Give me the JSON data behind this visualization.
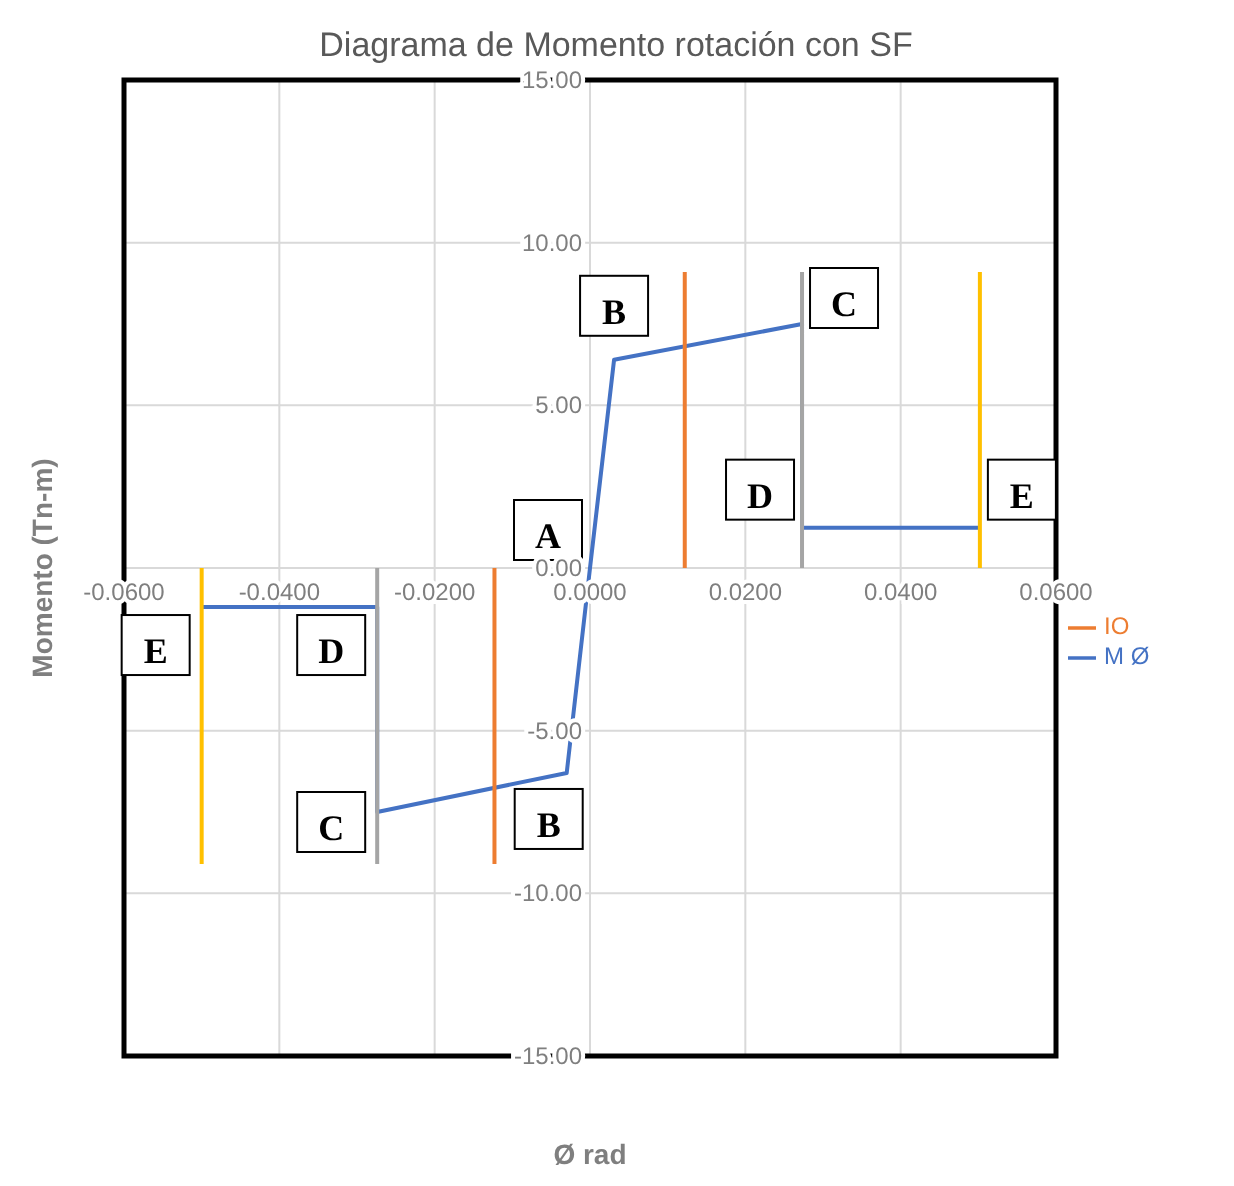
{
  "chart_data": {
    "type": "line",
    "title": "Diagrama de Momento rotación con SF",
    "xlabel": "Ø rad",
    "ylabel": "Momento (Tn-m)",
    "series": [
      {
        "name": "M Ø",
        "color": "#4472c4",
        "x": [
          -0.05,
          -0.0274,
          -0.0274,
          -0.003,
          0,
          0.0031,
          0.0273,
          0.0273,
          0.0502
        ],
        "values": [
          -1.2,
          -1.2,
          -7.5,
          -6.3,
          0,
          6.4,
          7.5,
          1.24,
          1.24
        ]
      },
      {
        "name": "IO",
        "color": "#ed7d31",
        "x": [
          -0.0123,
          -0.0123,
          null,
          0.0122,
          0.0122
        ],
        "values": [
          -9.1,
          0,
          null,
          0,
          9.1
        ]
      },
      {
        "color": "#a5a5a5",
        "x": [
          -0.0274,
          -0.0274,
          null,
          0.0273,
          0.0273
        ],
        "values": [
          -9.1,
          0,
          null,
          0,
          9.1
        ]
      },
      {
        "color": "#ffc000",
        "x": [
          -0.05,
          -0.05,
          null,
          0.0502,
          0.0502
        ],
        "values": [
          -9.1,
          0,
          null,
          0,
          9.1
        ]
      }
    ],
    "xlim": [
      -0.06,
      0.06
    ],
    "xticks": [
      {
        "value": -0.06,
        "label": "-0.0600"
      },
      {
        "value": -0.04,
        "label": "-0.0400"
      },
      {
        "value": -0.02,
        "label": "-0.0200"
      },
      {
        "value": 0,
        "label": "0.0000"
      },
      {
        "value": 0.02,
        "label": "0.0200"
      },
      {
        "value": 0.04,
        "label": "0.0400"
      },
      {
        "value": 0.06,
        "label": "0.0600"
      }
    ],
    "ylim": [
      -15,
      15
    ],
    "yticks": [
      {
        "value": -15,
        "label": "-15.00"
      },
      {
        "value": -10,
        "label": "-10.00"
      },
      {
        "value": -5,
        "label": "-5.00"
      },
      {
        "value": 0,
        "label": "0.00"
      },
      {
        "value": 5,
        "label": "5.00"
      },
      {
        "value": 10,
        "label": "10.00"
      },
      {
        "value": 15,
        "label": "15.00"
      }
    ],
    "annotations": [
      {
        "text": "A",
        "x": 0,
        "y": 0
      },
      {
        "text": "B",
        "x": 0.0031,
        "y": 6.4
      },
      {
        "text": "C",
        "x": 0.0273,
        "y": 7.5
      },
      {
        "text": "D",
        "x": 0.0273,
        "y": 1.24
      },
      {
        "text": "E",
        "x": 0.0502,
        "y": 1.24
      },
      {
        "text": "B",
        "x": -0.003,
        "y": -6.3
      },
      {
        "text": "C",
        "x": -0.0274,
        "y": -7.5
      },
      {
        "text": "D",
        "x": -0.0274,
        "y": -1.2
      },
      {
        "text": "E",
        "x": -0.05,
        "y": -1.2
      }
    ],
    "grid": true,
    "legend": "right",
    "marker": "none",
    "line_style": "solid"
  }
}
